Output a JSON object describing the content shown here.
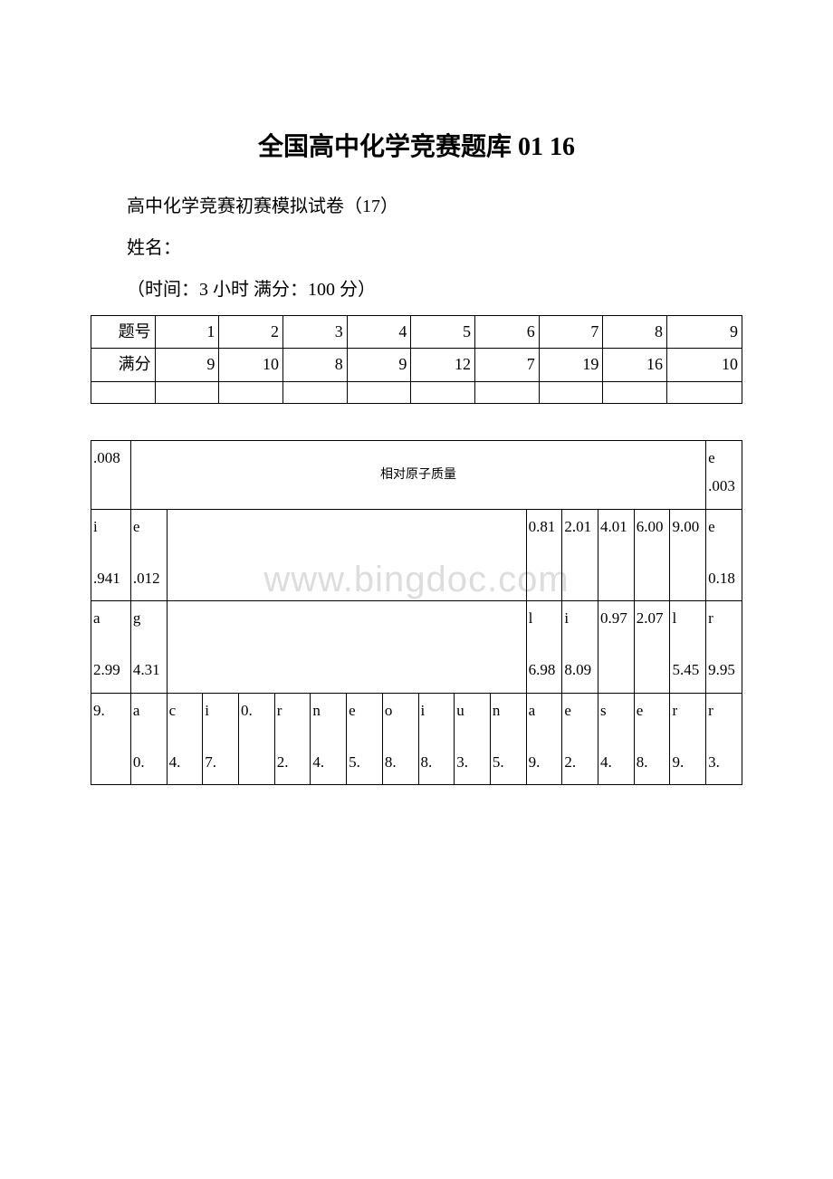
{
  "title": "全国高中化学竞赛题库 01 16",
  "line1": "高中化学竞赛初赛模拟试卷（17）",
  "line2": "姓名：",
  "line3": "（时间：3 小时 满分：100 分）",
  "score_table": {
    "row1_label": "题号",
    "row1_cells": [
      "1",
      "2",
      "3",
      "4",
      "5",
      "6",
      "7",
      "8",
      "9"
    ],
    "row2_label": "满分",
    "row2_cells": [
      "9",
      "10",
      "8",
      "9",
      "12",
      "7",
      "19",
      "16",
      "10"
    ]
  },
  "watermark": "www.bingdoc.com",
  "element_table": {
    "row1": {
      "c1": ".008",
      "big_label": "相对原子质量",
      "c_last_top": "e",
      "c_last_bottom": ".003"
    },
    "row2": {
      "c1": "i\n\n.941",
      "c2": "e\n\n.012",
      "c13": "0.81",
      "c14": "2.01",
      "c15": "4.01",
      "c16": "6.00",
      "c17": "9.00",
      "c18": "e\n\n0.18"
    },
    "row3": {
      "c1": "a\n\n2.99",
      "c2": "g\n\n4.31",
      "c13": "l\n\n6.98",
      "c14": "i\n\n8.09",
      "c15": "0.97",
      "c16": "2.07",
      "c17": "l\n\n5.45",
      "c18": "r\n\n9.95"
    },
    "row4": {
      "c1": "9.",
      "c2": "a\n\n0.",
      "c3": "c\n\n4.",
      "c4": "i\n\n7.",
      "c5": "0.",
      "c6": "r\n\n2.",
      "c7": "n\n\n4.",
      "c8": "e\n\n5.",
      "c9": "o\n\n8.",
      "c10": "i\n\n8.",
      "c11": "u\n\n3.",
      "c12": "n\n\n5.",
      "c13": "a\n\n9.",
      "c14": "e\n\n2.",
      "c15": "s\n\n4.",
      "c16": "e\n\n8.",
      "c17": "r\n\n9.",
      "c18": "r\n\n3."
    }
  },
  "colors": {
    "text": "#000000",
    "border": "#000000",
    "background": "#ffffff",
    "watermark": "#dddddd"
  }
}
